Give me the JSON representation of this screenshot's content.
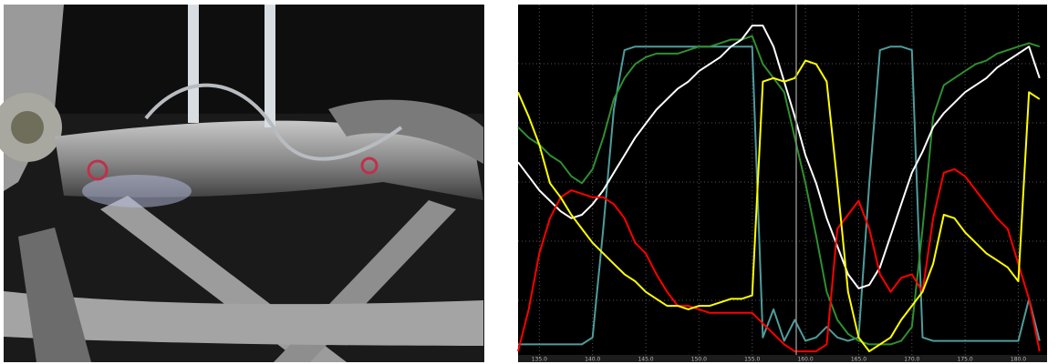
{
  "chart_data": {
    "type": "line",
    "x": [
      133,
      134,
      135,
      136,
      137,
      138,
      139,
      140,
      141,
      142,
      143,
      144,
      145,
      146,
      147,
      148,
      149,
      150,
      151,
      152,
      153,
      154,
      155,
      156,
      157,
      158,
      159,
      160,
      161,
      162,
      163,
      164,
      165,
      166,
      167,
      168,
      169,
      170,
      171,
      172,
      173,
      174,
      175,
      176,
      177,
      178,
      179,
      180,
      181,
      182
    ],
    "xlim": [
      133,
      182.7
    ],
    "xticks": [
      {
        "value": 135,
        "label": "135.0"
      },
      {
        "value": 140,
        "label": "140.0"
      },
      {
        "value": 145,
        "label": "145.0"
      },
      {
        "value": 150,
        "label": "150.0"
      },
      {
        "value": 155,
        "label": "155.0"
      },
      {
        "value": 160,
        "label": "160.0"
      },
      {
        "value": 165,
        "label": "165.0"
      },
      {
        "value": 170,
        "label": "170.0"
      },
      {
        "value": 175,
        "label": "175.0"
      },
      {
        "value": 180,
        "label": "180.0"
      }
    ],
    "ylim": [
      0,
      100
    ],
    "grid": true,
    "series": [
      {
        "color": "#4f9c9c",
        "values": [
          3,
          3,
          3,
          3,
          3,
          3,
          3,
          5,
          36,
          70,
          87,
          88,
          88,
          88,
          88,
          88,
          88,
          88,
          88,
          88,
          88,
          88,
          88,
          5,
          13,
          4,
          10,
          4,
          5,
          8,
          5,
          4,
          5,
          49,
          87,
          88,
          88,
          87,
          5,
          4,
          4,
          4,
          4,
          4,
          4,
          4,
          4,
          4,
          16,
          4
        ]
      },
      {
        "color": "#2f8f2f",
        "values": [
          65,
          62,
          60,
          57,
          55,
          51,
          49,
          53,
          62,
          73,
          79,
          83,
          85,
          86,
          86,
          86,
          87,
          88,
          88,
          89,
          90,
          90,
          91,
          83,
          79,
          75,
          62,
          49,
          34,
          18,
          10,
          6,
          4,
          3,
          3,
          3,
          4,
          8,
          36,
          68,
          77,
          79,
          81,
          83,
          84,
          86,
          87,
          88,
          89,
          88
        ]
      },
      {
        "color": "#ffffff",
        "values": [
          55,
          51,
          47,
          44,
          41,
          39,
          40,
          43,
          47,
          52,
          57,
          62,
          66,
          70,
          73,
          76,
          78,
          81,
          83,
          85,
          88,
          90,
          94,
          94,
          88,
          78,
          68,
          57,
          49,
          39,
          31,
          23,
          19,
          20,
          25,
          34,
          43,
          52,
          58,
          65,
          69,
          72,
          75,
          77,
          79,
          82,
          84,
          86,
          88,
          79
        ]
      },
      {
        "color": "#ff0000",
        "values": [
          1,
          13,
          29,
          39,
          45,
          47,
          46,
          45,
          45,
          43,
          39,
          32,
          29,
          23,
          18,
          14,
          14,
          13,
          12,
          12,
          12,
          12,
          12,
          9,
          6,
          3,
          1,
          1,
          1,
          3,
          36,
          40,
          44,
          36,
          23,
          18,
          22,
          23,
          18,
          39,
          52,
          53,
          51,
          47,
          43,
          39,
          36,
          26,
          16,
          1
        ]
      },
      {
        "color": "#ffff00",
        "values": [
          75,
          68,
          60,
          49,
          45,
          40,
          36,
          32,
          29,
          26,
          23,
          21,
          18,
          16,
          14,
          14,
          13,
          14,
          14,
          15,
          16,
          16,
          17,
          78,
          79,
          78,
          79,
          84,
          83,
          78,
          49,
          18,
          5,
          1,
          3,
          5,
          10,
          14,
          18,
          26,
          40,
          39,
          35,
          32,
          29,
          27,
          25,
          21,
          75,
          73
        ]
      }
    ]
  }
}
